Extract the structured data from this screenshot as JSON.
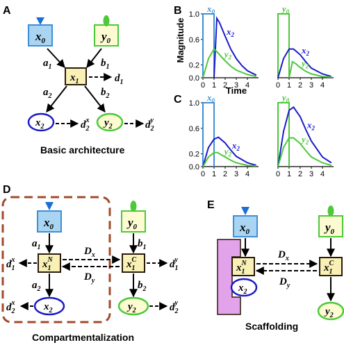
{
  "panels": {
    "A": "A",
    "B": "B",
    "C": "C",
    "D": "D",
    "E": "E"
  },
  "panel_a": {
    "x0_base": "x",
    "x0_sub": "0",
    "y0_base": "y",
    "y0_sub": "0",
    "x1_base": "x",
    "x1_sub": "1",
    "x2_base": "x",
    "x2_sub": "2",
    "y2_base": "y",
    "y2_sub": "2",
    "a1": "a",
    "a1_sub": "1",
    "b1": "b",
    "b1_sub": "1",
    "a2": "a",
    "a2_sub": "2",
    "b2": "b",
    "b2_sub": "2",
    "d1": "d",
    "d1_sub": "1",
    "d2x": "d",
    "d2x_sub": "2",
    "d2x_sup": "x",
    "d2y": "d",
    "d2y_sub": "2",
    "d2y_sup": "y",
    "caption": "Basic architecture"
  },
  "chart_data": [
    {
      "panel": "B",
      "type": "line",
      "ylabel": "Magnitude",
      "xlabel": "Time",
      "xlim": [
        0,
        5
      ],
      "ylim": [
        0,
        1.0
      ],
      "xticks": [
        "0",
        "1",
        "2",
        "3",
        "4"
      ],
      "yticks": [
        "0.0",
        "0.2",
        "0.6",
        "1.0"
      ],
      "input_label": "x0",
      "input_base": "x",
      "input_sub": "0",
      "input_pulse": {
        "start": 0,
        "end": 1,
        "height": 1.0
      },
      "series": [
        {
          "name": "x2",
          "color": "#1a1ac8",
          "x": [
            1,
            1.25,
            1.5,
            2,
            2.5,
            3,
            3.5,
            4,
            4.8
          ],
          "y": [
            0,
            0.93,
            0.86,
            0.65,
            0.45,
            0.3,
            0.19,
            0.11,
            0.04
          ]
        },
        {
          "name": "y2",
          "color": "#4cc83a",
          "x": [
            0,
            0.5,
            1,
            1.3,
            1.8,
            2.5,
            3,
            4,
            4.8
          ],
          "y": [
            0,
            0.3,
            0.45,
            0.4,
            0.3,
            0.18,
            0.12,
            0.05,
            0.02
          ]
        }
      ]
    },
    {
      "panel": "B-right",
      "type": "line",
      "xlim": [
        0,
        5
      ],
      "ylim": [
        0,
        1.0
      ],
      "xticks": [
        "0",
        "1",
        "2",
        "3",
        "4"
      ],
      "input_label": "y0",
      "input_base": "y",
      "input_sub": "0",
      "input_pulse": {
        "start": 0,
        "end": 1,
        "height": 1.0
      },
      "series": [
        {
          "name": "x2",
          "color": "#1a1ac8",
          "x": [
            0,
            0.5,
            1,
            1.4,
            2,
            2.5,
            3,
            4,
            4.8
          ],
          "y": [
            0,
            0.3,
            0.45,
            0.45,
            0.36,
            0.25,
            0.15,
            0.06,
            0.02
          ]
        },
        {
          "name": "y2",
          "color": "#4cc83a",
          "x": [
            1,
            1.3,
            1.6,
            2,
            2.5,
            3,
            4,
            4.8
          ],
          "y": [
            0,
            0.25,
            0.22,
            0.16,
            0.1,
            0.06,
            0.02,
            0.01
          ]
        }
      ]
    },
    {
      "panel": "C",
      "type": "line",
      "xlim": [
        0,
        5
      ],
      "ylim": [
        0,
        1.0
      ],
      "xticks": [
        "0",
        "1",
        "2",
        "3",
        "4"
      ],
      "yticks": [
        "0.0",
        "0.2",
        "0.6",
        "1.0"
      ],
      "input_label": "x0",
      "input_base": "x",
      "input_sub": "0",
      "input_pulse": {
        "start": 0,
        "end": 1,
        "height": 1.0
      },
      "series": [
        {
          "name": "x2",
          "color": "#1a1ac8",
          "x": [
            0,
            0.5,
            1,
            1.4,
            2,
            2.5,
            3,
            4,
            4.8
          ],
          "y": [
            0,
            0.3,
            0.43,
            0.46,
            0.37,
            0.26,
            0.16,
            0.06,
            0.02
          ]
        },
        {
          "name": "y2",
          "color": "#4cc83a",
          "x": [
            0,
            0.5,
            1,
            1.3,
            1.8,
            2.5,
            3,
            4,
            4.8
          ],
          "y": [
            0,
            0.15,
            0.22,
            0.22,
            0.17,
            0.1,
            0.06,
            0.02,
            0.01
          ]
        }
      ]
    },
    {
      "panel": "C-right",
      "type": "line",
      "xlim": [
        0,
        5
      ],
      "ylim": [
        0,
        1.0
      ],
      "xticks": [
        "0",
        "1",
        "2",
        "3",
        "4"
      ],
      "input_label": "y0",
      "input_base": "y",
      "input_sub": "0",
      "input_pulse": {
        "start": 0,
        "end": 1,
        "height": 1.0
      },
      "series": [
        {
          "name": "x2",
          "color": "#1a1ac8",
          "x": [
            0,
            0.5,
            1,
            1.4,
            2,
            2.5,
            3,
            4,
            4.8
          ],
          "y": [
            0,
            0.55,
            0.88,
            0.93,
            0.78,
            0.58,
            0.4,
            0.15,
            0.06
          ]
        },
        {
          "name": "y2",
          "color": "#4cc83a",
          "x": [
            0,
            0.5,
            1,
            1.4,
            2,
            2.5,
            3,
            4,
            4.8
          ],
          "y": [
            0,
            0.3,
            0.45,
            0.45,
            0.36,
            0.25,
            0.15,
            0.06,
            0.02
          ]
        }
      ]
    }
  ],
  "panel_d": {
    "x0_base": "x",
    "x0_sub": "0",
    "y0_base": "y",
    "y0_sub": "0",
    "x1n_base": "x",
    "x1n_sub": "1",
    "x1n_sup": "N",
    "x1c_base": "x",
    "x1c_sub": "1",
    "x1c_sup": "C",
    "x2_base": "x",
    "x2_sub": "2",
    "y2_base": "y",
    "y2_sub": "2",
    "a1": "a",
    "a1_sub": "1",
    "b1": "b",
    "b1_sub": "1",
    "a2": "a",
    "a2_sub": "2",
    "b2": "b",
    "b2_sub": "2",
    "Dx": "D",
    "Dx_sub": "x",
    "Dy": "D",
    "Dy_sub": "y",
    "d1x": "d",
    "d1x_sub": "1",
    "d1x_sup": "x",
    "d1y": "d",
    "d1y_sub": "1",
    "d1y_sup": "y",
    "d2x": "d",
    "d2x_sub": "2",
    "d2x_sup": "x",
    "d2y": "d",
    "d2y_sub": "2",
    "d2y_sup": "y",
    "caption": "Compartmentalization"
  },
  "panel_e": {
    "x0_base": "x",
    "x0_sub": "0",
    "y0_base": "y",
    "y0_sub": "0",
    "x1n_base": "x",
    "x1n_sub": "1",
    "x1n_sup": "N",
    "x1c_base": "x",
    "x1c_sub": "1",
    "x1c_sup": "C",
    "x2_base": "x",
    "x2_sub": "2",
    "y2_base": "y",
    "y2_sub": "2",
    "Dx": "D",
    "Dx_sub": "x",
    "Dy": "D",
    "Dy_sub": "y",
    "caption": "Scaffolding"
  },
  "colors": {
    "blue": "#1a1ac8",
    "blue_fill": "#a9d4f2",
    "blue_border": "#3e8fd6",
    "green": "#4cc83a",
    "green_fill": "#fdfbd2",
    "yellow_fill": "#f8f0b4",
    "node_border": "#2a1a0a",
    "compartment": "#a24a2a",
    "scaffold": "#e3a3eb"
  }
}
